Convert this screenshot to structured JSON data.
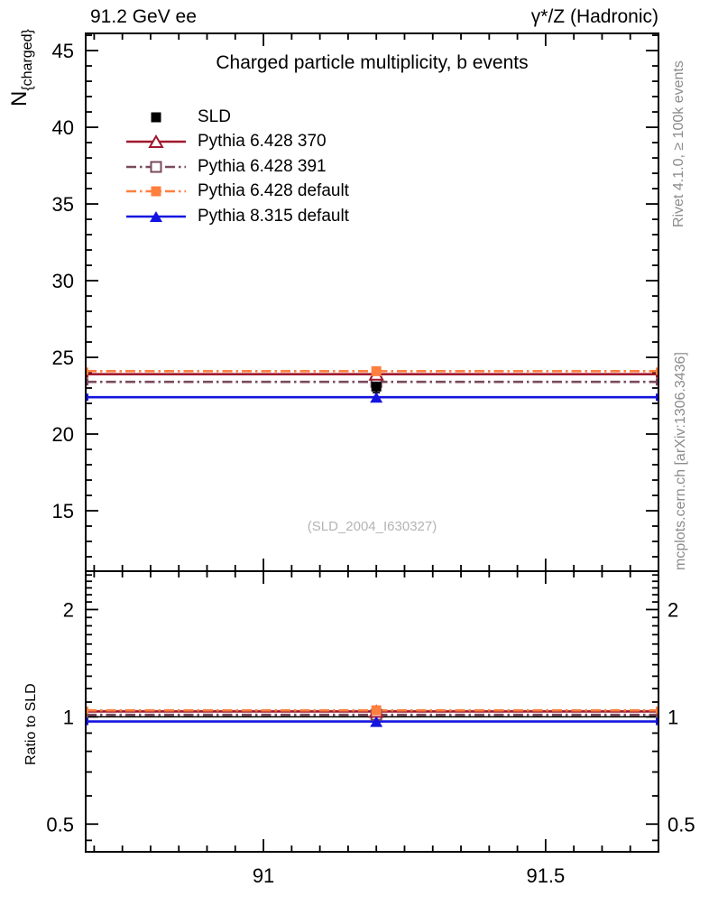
{
  "header": {
    "left_label": "91.2 GeV ee",
    "right_label": "γ*/Z (Hadronic)"
  },
  "y_axis": {
    "base": "N",
    "sub": "{charged}"
  },
  "ratio_axis_label": "Ratio to SLD",
  "side_notes": {
    "rivet": "Rivet 4.1.0, ≥ 100k events",
    "mcplots": "mcplots.cern.ch [arXiv:1306.3436]"
  },
  "watermark": "(SLD_2004_I630327)",
  "chart_data": {
    "type": "line",
    "title": "Charged particle multiplicity, b events",
    "xlabel": "",
    "x_point": 91.2,
    "xlim": [
      90.685,
      91.7
    ],
    "xticks": [
      {
        "value": 91,
        "label": "91"
      },
      {
        "value": 91.5,
        "label": "91.5"
      }
    ],
    "xminor_step": 0.05,
    "main_panel": {
      "ylim": [
        11.06,
        46.12
      ],
      "yticks_major": [
        15,
        20,
        25,
        30,
        35,
        40,
        45
      ],
      "yminor_step": 1,
      "grid": false
    },
    "ratio_panel": {
      "scale": "log",
      "ylim": [
        0.418,
        2.562
      ],
      "yticks": [
        {
          "value": 0.5,
          "label": "0.5"
        },
        {
          "value": 1,
          "label": "1"
        },
        {
          "value": 2,
          "label": "2"
        }
      ],
      "yticks_minor": [
        0.45,
        0.6,
        0.7,
        0.8,
        0.9,
        1.1,
        1.2,
        1.3,
        1.4,
        1.5,
        1.6,
        1.7,
        1.8,
        1.9,
        2.1,
        2.2,
        2.3,
        2.4,
        2.5
      ],
      "reference_line": 1.0
    },
    "legend_position": "top-left",
    "series": [
      {
        "name": "SLD",
        "role": "data",
        "marker": "square-filled",
        "color": "#000000",
        "value": 23.1,
        "error": 0.4,
        "ratio": 1.0
      },
      {
        "name": "Pythia 6.428 370",
        "role": "mc",
        "marker": "triangle-open",
        "line_style": "solid",
        "color": "#a0182e",
        "value": 23.9,
        "ratio": 1.035
      },
      {
        "name": "Pythia 6.428 391",
        "role": "mc",
        "marker": "square-open",
        "line_style": "dashdot",
        "color": "#7a4a5e",
        "value": 23.4,
        "ratio": 1.013
      },
      {
        "name": "Pythia 6.428 default",
        "role": "mc",
        "marker": "square-filled",
        "line_style": "dashdot",
        "color": "#ff7f3f",
        "value": 24.1,
        "ratio": 1.043
      },
      {
        "name": "Pythia 8.315 default",
        "role": "mc",
        "marker": "triangle-filled",
        "line_style": "solid",
        "color": "#1414e0",
        "value": 22.4,
        "ratio": 0.97
      }
    ]
  }
}
